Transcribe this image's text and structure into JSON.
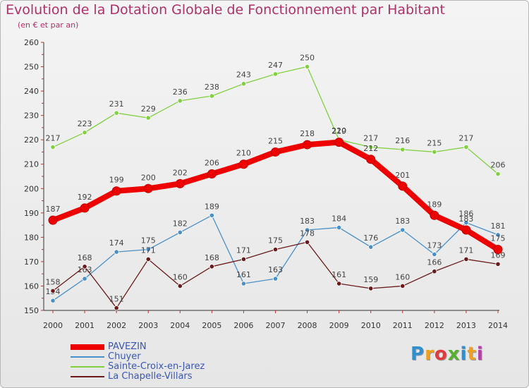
{
  "title": "Evolution de la Dotation Globale de Fonctionnement par Habitant",
  "subtitle": "(en € et par an)",
  "brand": {
    "text": "Proxiti",
    "letters": [
      "P",
      "r",
      "o",
      "x",
      "i",
      "t",
      "i"
    ],
    "colors": [
      "#2f8fcf",
      "#f0a020",
      "#e23a3a",
      "#58b030",
      "#2f8fcf",
      "#f0a020",
      "#b53ea8"
    ]
  },
  "chart_data": {
    "type": "line",
    "x": [
      2000,
      2001,
      2002,
      2003,
      2004,
      2005,
      2006,
      2007,
      2008,
      2009,
      2010,
      2011,
      2012,
      2013,
      2014
    ],
    "ylim": [
      150,
      260
    ],
    "yticks": [
      150,
      160,
      170,
      180,
      190,
      200,
      210,
      220,
      230,
      240,
      250,
      260
    ],
    "grid": false,
    "legend_position": "bottom",
    "series": [
      {
        "name": "PAVEZIN",
        "color": "#ee0000",
        "values": [
          187,
          192,
          199,
          200,
          202,
          206,
          210,
          215,
          218,
          219,
          212,
          201,
          189,
          183,
          175
        ]
      },
      {
        "name": "Chuyer",
        "color": "#4a90c8",
        "values": [
          154,
          163,
          174,
          175,
          182,
          189,
          161,
          163,
          183,
          184,
          176,
          183,
          173,
          186,
          181
        ]
      },
      {
        "name": "Sainte-Croix-en-Jarez",
        "color": "#80d040",
        "values": [
          217,
          223,
          231,
          229,
          236,
          238,
          243,
          247,
          250,
          220,
          217,
          216,
          215,
          217,
          206
        ]
      },
      {
        "name": "La Chapelle-Villars",
        "color": "#6a1a1a",
        "values": [
          158,
          168,
          151,
          171,
          160,
          168,
          171,
          175,
          178,
          161,
          159,
          160,
          166,
          171,
          169
        ]
      }
    ]
  }
}
